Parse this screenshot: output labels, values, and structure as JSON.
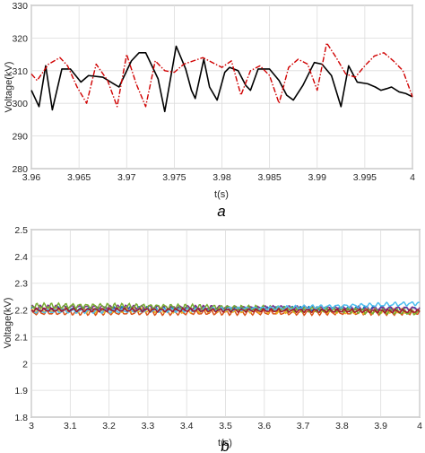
{
  "chart_data": [
    {
      "type": "line",
      "panel_label": "a",
      "xlabel": "t(s)",
      "ylabel": "Voltage(kV)",
      "xlim": [
        3.96,
        4.0
      ],
      "ylim": [
        280,
        330
      ],
      "x_ticks": [
        "3.96",
        "3.965",
        "3.97",
        "3.975",
        "3.98",
        "3.985",
        "3.99",
        "3.995",
        "4"
      ],
      "y_ticks": [
        "280",
        "290",
        "300",
        "310",
        "320",
        "330"
      ],
      "grid": true,
      "series": [
        {
          "color": "#000000",
          "style": "solid",
          "x": [
            3.96,
            3.9608,
            3.9615,
            3.9622,
            3.9632,
            3.9641,
            3.9652,
            3.966,
            3.9675,
            3.9692,
            3.9705,
            3.9713,
            3.972,
            3.9733,
            3.974,
            3.9752,
            3.9762,
            3.9768,
            3.9772,
            3.9781,
            3.9787,
            3.9795,
            3.9803,
            3.9808,
            3.9817,
            3.9825,
            3.983,
            3.9838,
            3.985,
            3.986,
            3.9868,
            3.9875,
            3.9885,
            3.9897,
            3.9905,
            3.9915,
            3.9925,
            3.9933,
            3.9942,
            3.9953,
            3.9961,
            3.9967,
            3.9973,
            3.9978,
            3.9986,
            3.9993,
            4.0
          ],
          "y": [
            304,
            299,
            311.5,
            298,
            310.5,
            310.5,
            306.5,
            308.5,
            308,
            305,
            313,
            315.5,
            315.5,
            307.5,
            297.5,
            317.5,
            310.5,
            304,
            301.5,
            313.5,
            305,
            301,
            309.5,
            311,
            310,
            305.5,
            304,
            310.5,
            310.5,
            307,
            302.5,
            301,
            305.5,
            312.5,
            312,
            308.5,
            299,
            311.5,
            306.5,
            306,
            305,
            304,
            304.5,
            305,
            303.5,
            303,
            302
          ]
        },
        {
          "color": "#d00000",
          "style": "dashdot",
          "x": [
            3.96,
            3.9606,
            3.9618,
            3.963,
            3.9638,
            3.9648,
            3.9658,
            3.9668,
            3.968,
            3.969,
            3.97,
            3.971,
            3.972,
            3.973,
            3.974,
            3.975,
            3.976,
            3.977,
            3.978,
            3.979,
            3.98,
            3.981,
            3.982,
            3.983,
            3.984,
            3.985,
            3.986,
            3.987,
            3.988,
            3.989,
            3.99,
            3.991,
            3.992,
            3.993,
            3.994,
            3.995,
            3.996,
            3.997,
            3.998,
            3.999,
            4.0
          ],
          "y": [
            309,
            307,
            312,
            314,
            311.5,
            305,
            300,
            312,
            307,
            299,
            315,
            306,
            299,
            313,
            310,
            309.5,
            312,
            313,
            314,
            312.5,
            311,
            313,
            302.5,
            310,
            311.5,
            308.5,
            300,
            311,
            313.5,
            312,
            304,
            318.5,
            314,
            309,
            308,
            311.5,
            314.5,
            315.5,
            313,
            310,
            302
          ]
        }
      ]
    },
    {
      "type": "line",
      "panel_label": "b",
      "xlabel": "t(s)",
      "ylabel": "Voltage(kV)",
      "xlim": [
        3.0,
        4.0
      ],
      "ylim": [
        1.8,
        2.5
      ],
      "x_ticks": [
        "3",
        "3.1",
        "3.2",
        "3.3",
        "3.4",
        "3.5",
        "3.6",
        "3.7",
        "3.8",
        "3.9",
        "4"
      ],
      "y_ticks": [
        "1.8",
        "1.9",
        "2",
        "2.1",
        "2.2",
        "2.3",
        "2.4",
        "2.5"
      ],
      "grid": true,
      "series": [
        {
          "color": "#0072BD",
          "offset": 2.205,
          "amplitude": 0.006,
          "freq": 48,
          "phase": 0.0,
          "drift": 0.0
        },
        {
          "color": "#D95319",
          "offset": 2.19,
          "amplitude": 0.007,
          "freq": 52,
          "phase": 1.1,
          "drift": 0.0
        },
        {
          "color": "#EDB120",
          "offset": 2.2,
          "amplitude": 0.008,
          "freq": 45,
          "phase": 2.0,
          "drift": -0.005
        },
        {
          "color": "#7E2F8E",
          "offset": 2.21,
          "amplitude": 0.006,
          "freq": 50,
          "phase": 0.5,
          "drift": -0.005
        },
        {
          "color": "#77AC30",
          "offset": 2.215,
          "amplitude": 0.008,
          "freq": 55,
          "phase": 2.7,
          "drift": -0.025
        },
        {
          "color": "#4DBEEE",
          "offset": 2.195,
          "amplitude": 0.006,
          "freq": 47,
          "phase": 1.6,
          "drift": 0.03
        },
        {
          "color": "#A2142F",
          "offset": 2.2,
          "amplitude": 0.005,
          "freq": 53,
          "phase": 3.3,
          "drift": -0.005
        }
      ]
    }
  ]
}
